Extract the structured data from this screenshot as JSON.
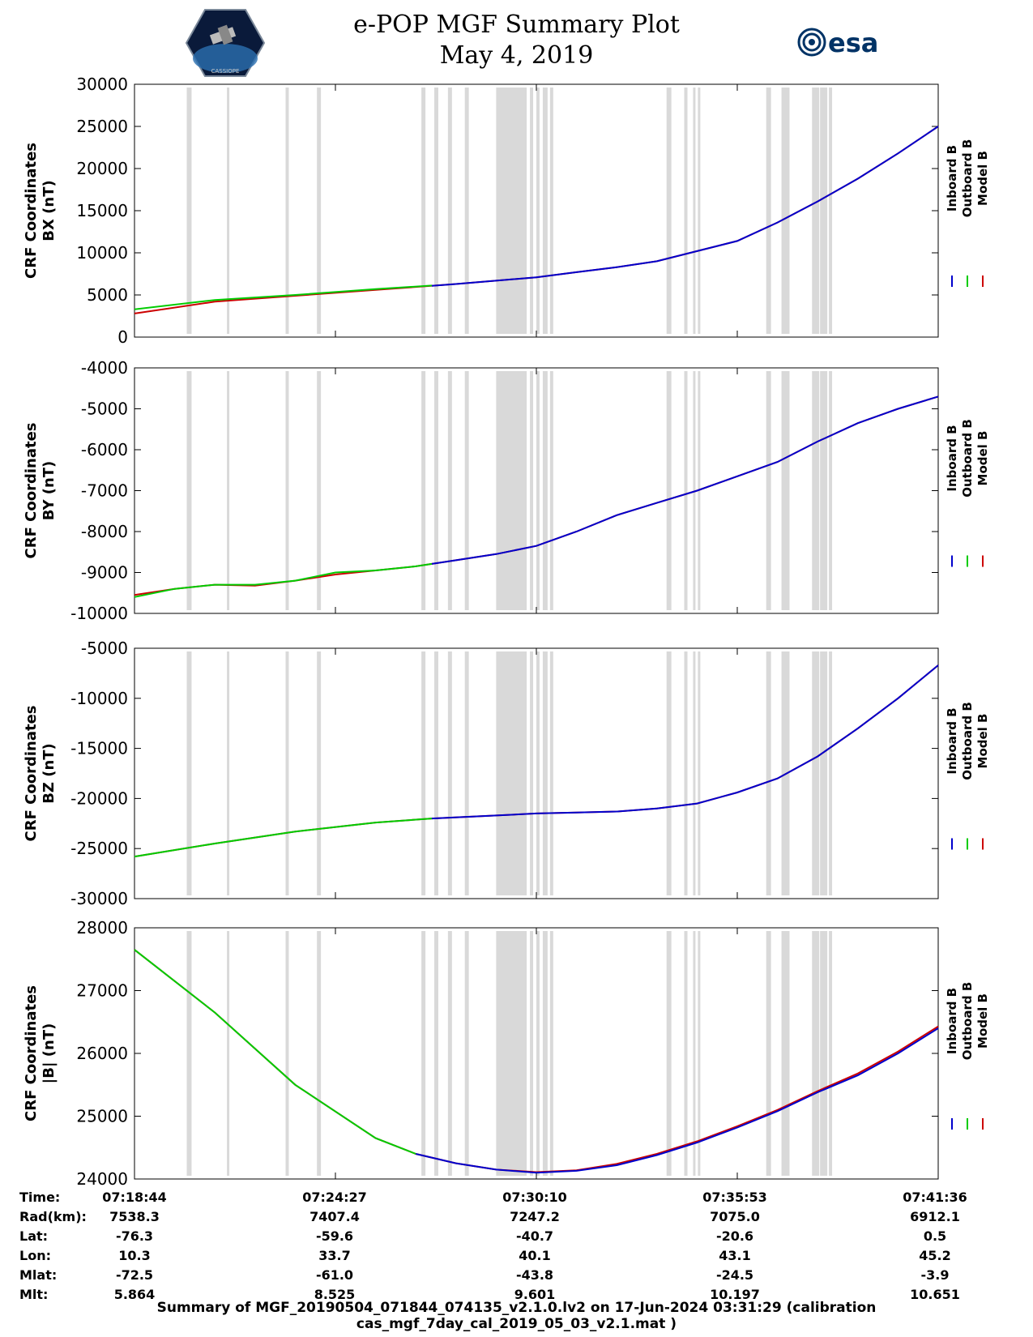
{
  "header": {
    "title_line1": "e-POP MGF Summary Plot",
    "title_line2": "May 4, 2019",
    "left_logo_text": "CASSIOPE",
    "right_logo_text": "esa"
  },
  "colors": {
    "inboard": "#0000cc",
    "outboard": "#00cc00",
    "model": "#cc0000",
    "gap_shade": "#d9d9d9"
  },
  "legend": [
    "Inboard B",
    "Outboard B",
    "Model B"
  ],
  "chart_data": [
    {
      "type": "line",
      "ylabel_line1": "CRF Coordinates",
      "ylabel_line2": "BX (nT)",
      "ylim": [
        0,
        30000
      ],
      "yticks": [
        "30000",
        "25000",
        "20000",
        "15000",
        "10000",
        "5000",
        "0"
      ],
      "x": [
        0,
        0.1,
        0.2,
        0.3,
        0.4,
        0.5,
        0.55,
        0.6,
        0.65,
        0.7,
        0.75,
        0.8,
        0.85,
        0.9,
        0.95,
        1.0
      ],
      "series": [
        {
          "name": "Inboard B",
          "from": 0.37,
          "values": [
            3200,
            4300,
            4900,
            5600,
            6300,
            7100,
            7700,
            8300,
            9000,
            10200,
            11400,
            13600,
            16100,
            18800,
            21800,
            25000
          ]
        },
        {
          "name": "Outboard B",
          "to": 0.37,
          "values": [
            3300,
            4400,
            5000,
            5700,
            6300,
            7100,
            7700,
            8300,
            9000,
            10200,
            11400,
            13600,
            16100,
            18800,
            21800,
            25000
          ]
        },
        {
          "name": "Model B",
          "values": [
            2800,
            4200,
            4900,
            5600,
            6300,
            7100,
            7700,
            8300,
            9000,
            10200,
            11400,
            13600,
            16100,
            18800,
            21800,
            25000
          ]
        }
      ]
    },
    {
      "type": "line",
      "ylabel_line1": "CRF Coordinates",
      "ylabel_line2": "BY (nT)",
      "ylim": [
        -10000,
        -4000
      ],
      "yticks": [
        "-4000",
        "-5000",
        "-6000",
        "-7000",
        "-8000",
        "-9000",
        "-10000"
      ],
      "x": [
        0,
        0.05,
        0.1,
        0.15,
        0.2,
        0.25,
        0.3,
        0.35,
        0.4,
        0.45,
        0.5,
        0.55,
        0.6,
        0.65,
        0.7,
        0.75,
        0.8,
        0.85,
        0.9,
        0.95,
        1.0
      ],
      "series": [
        {
          "name": "Inboard B",
          "from": 0.37,
          "values": [
            -9600,
            -9400,
            -9300,
            -9300,
            -9200,
            -9000,
            -8950,
            -8850,
            -8700,
            -8550,
            -8350,
            -8000,
            -7600,
            -7300,
            -7000,
            -6650,
            -6300,
            -5800,
            -5350,
            -5000,
            -4700
          ]
        },
        {
          "name": "Outboard B",
          "to": 0.37,
          "values": [
            -9600,
            -9400,
            -9300,
            -9300,
            -9200,
            -9000,
            -8950,
            -8850,
            -8700,
            -8550,
            -8350,
            -8000,
            -7600,
            -7300,
            -7000,
            -6650,
            -6300,
            -5800,
            -5350,
            -5000,
            -4700
          ]
        },
        {
          "name": "Model B",
          "values": [
            -9550,
            -9400,
            -9300,
            -9320,
            -9200,
            -9050,
            -8950,
            -8850,
            -8700,
            -8550,
            -8350,
            -8000,
            -7600,
            -7300,
            -7000,
            -6650,
            -6300,
            -5800,
            -5350,
            -5000,
            -4700
          ]
        }
      ]
    },
    {
      "type": "line",
      "ylabel_line1": "CRF Coordinates",
      "ylabel_line2": "BZ (nT)",
      "ylim": [
        -30000,
        -5000
      ],
      "yticks": [
        "-5000",
        "-10000",
        "-15000",
        "-20000",
        "-25000",
        "-30000"
      ],
      "x": [
        0,
        0.1,
        0.2,
        0.3,
        0.37,
        0.45,
        0.5,
        0.55,
        0.6,
        0.65,
        0.7,
        0.75,
        0.8,
        0.85,
        0.9,
        0.95,
        1.0
      ],
      "series": [
        {
          "name": "Inboard B",
          "from": 0.37,
          "values": [
            -25800,
            -24500,
            -23300,
            -22400,
            -22000,
            -21700,
            -21500,
            -21400,
            -21300,
            -21000,
            -20500,
            -19400,
            -18000,
            -15800,
            -13000,
            -10000,
            -6700
          ]
        },
        {
          "name": "Outboard B",
          "to": 0.37,
          "values": [
            -25800,
            -24500,
            -23300,
            -22400,
            -22000,
            -21700,
            -21500,
            -21400,
            -21300,
            -21000,
            -20500,
            -19400,
            -18000,
            -15800,
            -13000,
            -10000,
            -6700
          ]
        },
        {
          "name": "Model B",
          "values": [
            -25800,
            -24500,
            -23300,
            -22400,
            -22000,
            -21700,
            -21500,
            -21400,
            -21300,
            -21000,
            -20500,
            -19400,
            -18000,
            -15800,
            -13000,
            -10000,
            -6700
          ]
        }
      ]
    },
    {
      "type": "line",
      "ylabel_line1": "CRF Coordinates",
      "ylabel_line2": "|B| (nT)",
      "ylim": [
        24000,
        28000
      ],
      "yticks": [
        "28000",
        "27000",
        "26000",
        "25000",
        "24000"
      ],
      "x": [
        0,
        0.1,
        0.2,
        0.3,
        0.35,
        0.4,
        0.45,
        0.5,
        0.55,
        0.6,
        0.65,
        0.7,
        0.75,
        0.8,
        0.85,
        0.9,
        0.95,
        1.0
      ],
      "series": [
        {
          "name": "Inboard B",
          "from": 0.35,
          "values": [
            27650,
            26650,
            25500,
            24650,
            24400,
            24250,
            24150,
            24100,
            24130,
            24220,
            24380,
            24580,
            24820,
            25080,
            25380,
            25650,
            26000,
            26400
          ]
        },
        {
          "name": "Outboard B",
          "to": 0.35,
          "values": [
            27650,
            26650,
            25500,
            24650,
            24400,
            24250,
            24150,
            24100,
            24130,
            24220,
            24380,
            24580,
            24820,
            25080,
            25380,
            25650,
            26000,
            26400
          ]
        },
        {
          "name": "Model B",
          "values": [
            27650,
            26650,
            25500,
            24650,
            24400,
            24250,
            24150,
            24110,
            24140,
            24240,
            24400,
            24600,
            24840,
            25100,
            25400,
            25680,
            26030,
            26430
          ]
        }
      ]
    }
  ],
  "gaps": [
    [
      0.065,
      0.071
    ],
    [
      0.115,
      0.118
    ],
    [
      0.188,
      0.192
    ],
    [
      0.227,
      0.232
    ],
    [
      0.357,
      0.362
    ],
    [
      0.373,
      0.378
    ],
    [
      0.39,
      0.395
    ],
    [
      0.411,
      0.416
    ],
    [
      0.45,
      0.488
    ],
    [
      0.492,
      0.496
    ],
    [
      0.5,
      0.504
    ],
    [
      0.508,
      0.514
    ],
    [
      0.517,
      0.521
    ],
    [
      0.662,
      0.668
    ],
    [
      0.684,
      0.688
    ],
    [
      0.695,
      0.698
    ],
    [
      0.701,
      0.704
    ],
    [
      0.786,
      0.792
    ],
    [
      0.805,
      0.815
    ],
    [
      0.843,
      0.852
    ],
    [
      0.853,
      0.862
    ],
    [
      0.864,
      0.868
    ]
  ],
  "ephemeris": {
    "labels": [
      "Time:",
      "Rad(km):",
      "Lat:",
      "Lon:",
      "Mlat:",
      "Mlt:"
    ],
    "columns": [
      [
        "07:18:44",
        "7538.3",
        "-76.3",
        "10.3",
        "-72.5",
        "5.864"
      ],
      [
        "07:24:27",
        "7407.4",
        "-59.6",
        "33.7",
        "-61.0",
        "8.525"
      ],
      [
        "07:30:10",
        "7247.2",
        "-40.7",
        "40.1",
        "-43.8",
        "9.601"
      ],
      [
        "07:35:53",
        "7075.0",
        "-20.6",
        "43.1",
        "-24.5",
        "10.197"
      ],
      [
        "07:41:36",
        "6912.1",
        "0.5",
        "45.2",
        "-3.9",
        "10.651"
      ]
    ]
  },
  "footer": "Summary of MGF_20190504_071844_074135_v2.1.0.lv2 on 17-Jun-2024 03:31:29 (calibration cas_mgf_7day_cal_2019_05_03_v2.1.mat )"
}
